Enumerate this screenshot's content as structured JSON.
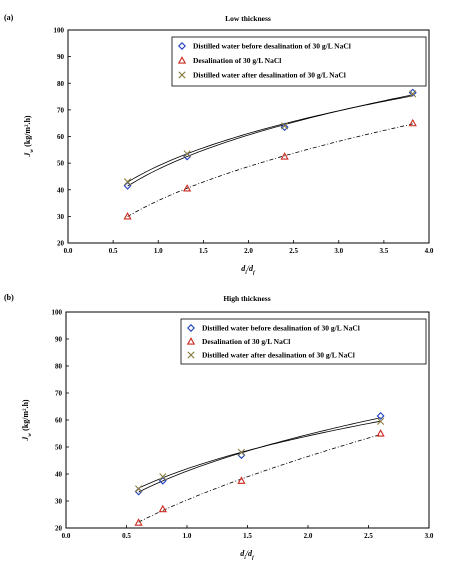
{
  "chart_data": [
    {
      "type": "scatter",
      "panel_label": "(a)",
      "title": "Low thickness",
      "xlabel": "d_i/d_f",
      "ylabel": "J_w (kg/m².h)",
      "xlim": [
        0.0,
        4.0
      ],
      "ylim": [
        20,
        100
      ],
      "xticks": [
        "0.0",
        "0.5",
        "1.0",
        "1.5",
        "2.0",
        "2.5",
        "3.0",
        "3.5",
        "4.0"
      ],
      "yticks": [
        "20",
        "30",
        "40",
        "50",
        "60",
        "70",
        "80",
        "90",
        "100"
      ],
      "grid": false,
      "legend_position": "top-right",
      "series": [
        {
          "name": "Distilled water before desalination of 30 g/L NaCl",
          "marker": "diamond",
          "color": "#1f3fbf",
          "line": "solid",
          "x": [
            0.66,
            1.32,
            2.4,
            3.82
          ],
          "y": [
            41.5,
            52.5,
            63.5,
            76.5
          ]
        },
        {
          "name": "Desalination of 30 g/L NaCl",
          "marker": "triangle",
          "color": "#cc2a1f",
          "line": "dashdot",
          "x": [
            0.66,
            1.32,
            2.4,
            3.82
          ],
          "y": [
            30.0,
            40.5,
            52.5,
            65.0
          ]
        },
        {
          "name": "Distilled water after desalination of 30 g/L NaCl",
          "marker": "x",
          "color": "#8a7f45",
          "line": "solid",
          "x": [
            0.66,
            1.32,
            2.4,
            3.82
          ],
          "y": [
            43.0,
            53.5,
            64.0,
            76.0
          ]
        }
      ]
    },
    {
      "type": "scatter",
      "panel_label": "(b)",
      "title": "High thickness",
      "xlabel": "d_i/d_f",
      "ylabel": "J_w (kg/m².h)",
      "xlim": [
        0.0,
        3.0
      ],
      "ylim": [
        20,
        100
      ],
      "xticks": [
        "0.0",
        "0.5",
        "1.0",
        "1.5",
        "2.0",
        "2.5",
        "3.0"
      ],
      "yticks": [
        "20",
        "30",
        "40",
        "50",
        "60",
        "70",
        "80",
        "90",
        "100"
      ],
      "grid": false,
      "legend_position": "top-right",
      "series": [
        {
          "name": "Distilled water before desalination of 30 g/L NaCl",
          "marker": "diamond",
          "color": "#1f3fbf",
          "line": "solid",
          "x": [
            0.6,
            0.8,
            1.45,
            2.6
          ],
          "y": [
            33.5,
            37.5,
            47.0,
            61.5
          ]
        },
        {
          "name": "Desalination of 30 g/L NaCl",
          "marker": "triangle",
          "color": "#cc2a1f",
          "line": "dashdot",
          "x": [
            0.6,
            0.8,
            1.45,
            2.6
          ],
          "y": [
            22.0,
            27.0,
            37.5,
            55.0
          ]
        },
        {
          "name": "Distilled water after desalination of 30 g/L NaCl",
          "marker": "x",
          "color": "#8a7f45",
          "line": "solid",
          "x": [
            0.6,
            0.8,
            1.45,
            2.6
          ],
          "y": [
            34.5,
            39.0,
            48.0,
            59.5
          ]
        }
      ]
    }
  ]
}
